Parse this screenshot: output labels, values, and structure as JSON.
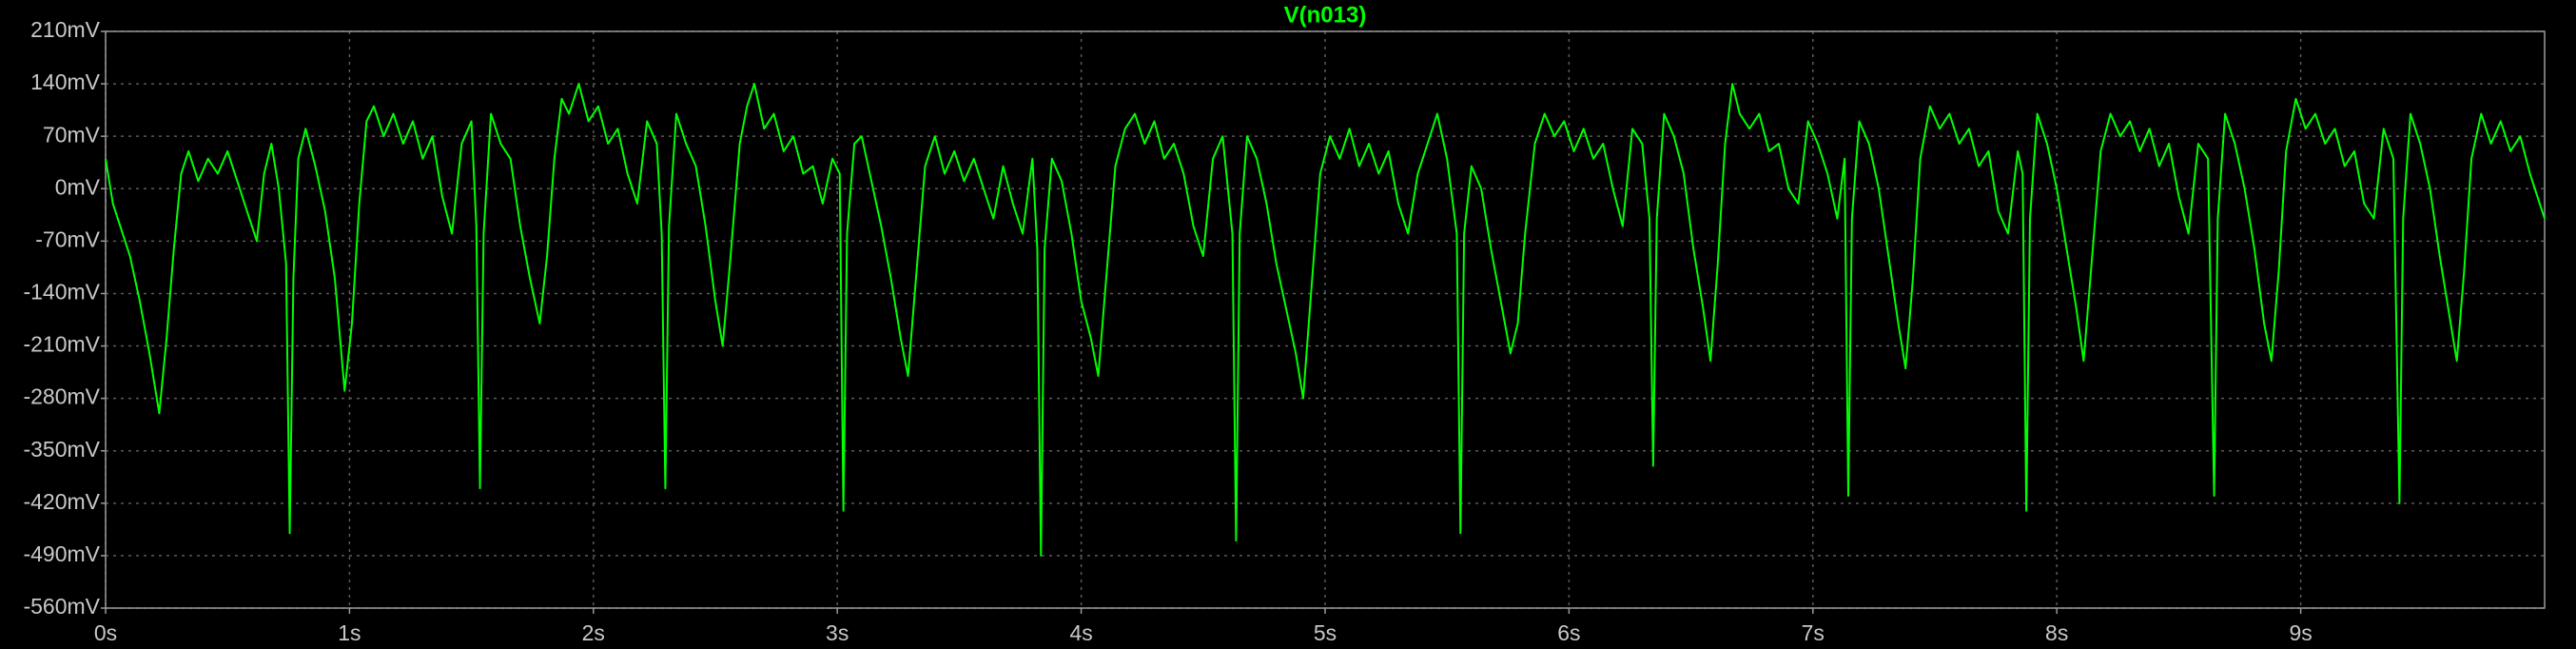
{
  "chart_data": {
    "type": "line",
    "series": [
      {
        "name": "V(n013)",
        "color": "#00ff00",
        "x": [
          0,
          0.03,
          0.06,
          0.1,
          0.14,
          0.18,
          0.22,
          0.25,
          0.28,
          0.31,
          0.34,
          0.38,
          0.42,
          0.46,
          0.5,
          0.54,
          0.58,
          0.62,
          0.65,
          0.68,
          0.71,
          0.74,
          0.755,
          0.77,
          0.79,
          0.82,
          0.86,
          0.9,
          0.94,
          0.98,
          1.01,
          1.04,
          1.07,
          1.1,
          1.14,
          1.18,
          1.22,
          1.26,
          1.3,
          1.34,
          1.38,
          1.42,
          1.46,
          1.5,
          1.52,
          1.535,
          1.55,
          1.58,
          1.62,
          1.66,
          1.7,
          1.74,
          1.78,
          1.81,
          1.84,
          1.87,
          1.9,
          1.94,
          1.98,
          2.02,
          2.06,
          2.1,
          2.14,
          2.18,
          2.22,
          2.26,
          2.28,
          2.295,
          2.31,
          2.34,
          2.38,
          2.42,
          2.46,
          2.5,
          2.53,
          2.56,
          2.6,
          2.63,
          2.66,
          2.7,
          2.74,
          2.78,
          2.82,
          2.86,
          2.9,
          2.94,
          2.98,
          3.01,
          3.025,
          3.04,
          3.07,
          3.1,
          3.14,
          3.18,
          3.22,
          3.26,
          3.29,
          3.32,
          3.36,
          3.4,
          3.44,
          3.48,
          3.52,
          3.56,
          3.6,
          3.64,
          3.68,
          3.72,
          3.76,
          3.8,
          3.82,
          3.835,
          3.85,
          3.88,
          3.92,
          3.96,
          4.0,
          4.04,
          4.07,
          4.1,
          4.14,
          4.18,
          4.22,
          4.26,
          4.3,
          4.34,
          4.38,
          4.42,
          4.46,
          4.5,
          4.54,
          4.58,
          4.62,
          4.635,
          4.65,
          4.68,
          4.72,
          4.76,
          4.8,
          4.84,
          4.88,
          4.91,
          4.94,
          4.98,
          5.02,
          5.06,
          5.1,
          5.14,
          5.18,
          5.22,
          5.26,
          5.3,
          5.34,
          5.38,
          5.42,
          5.46,
          5.5,
          5.54,
          5.555,
          5.57,
          5.6,
          5.64,
          5.68,
          5.72,
          5.76,
          5.79,
          5.82,
          5.86,
          5.9,
          5.94,
          5.98,
          6.02,
          6.06,
          6.1,
          6.14,
          6.18,
          6.22,
          6.26,
          6.3,
          6.33,
          6.345,
          6.36,
          6.39,
          6.43,
          6.47,
          6.51,
          6.55,
          6.58,
          6.61,
          6.64,
          6.67,
          6.7,
          6.74,
          6.78,
          6.82,
          6.86,
          6.9,
          6.94,
          6.98,
          7.02,
          7.06,
          7.1,
          7.13,
          7.145,
          7.16,
          7.19,
          7.23,
          7.27,
          7.31,
          7.35,
          7.38,
          7.41,
          7.44,
          7.48,
          7.52,
          7.56,
          7.6,
          7.64,
          7.68,
          7.72,
          7.76,
          7.8,
          7.84,
          7.86,
          7.875,
          7.89,
          7.92,
          7.96,
          8.0,
          8.04,
          8.08,
          8.11,
          8.14,
          8.18,
          8.22,
          8.26,
          8.3,
          8.34,
          8.38,
          8.42,
          8.46,
          8.5,
          8.54,
          8.58,
          8.62,
          8.645,
          8.66,
          8.69,
          8.73,
          8.77,
          8.81,
          8.85,
          8.88,
          8.91,
          8.94,
          8.98,
          9.02,
          9.06,
          9.1,
          9.14,
          9.18,
          9.22,
          9.26,
          9.3,
          9.34,
          9.38,
          9.405,
          9.42,
          9.45,
          9.49,
          9.53,
          9.57,
          9.61,
          9.64,
          9.67,
          9.7,
          9.74,
          9.78,
          9.82,
          9.86,
          9.9,
          9.94,
          9.98,
          10
        ],
        "values": [
          40,
          -20,
          -50,
          -90,
          -150,
          -220,
          -300,
          -200,
          -80,
          20,
          50,
          10,
          40,
          20,
          50,
          10,
          -30,
          -70,
          20,
          60,
          0,
          -100,
          -460,
          -120,
          40,
          80,
          30,
          -30,
          -120,
          -270,
          -180,
          -20,
          90,
          110,
          70,
          100,
          60,
          90,
          40,
          70,
          -10,
          -60,
          60,
          90,
          -50,
          -400,
          -60,
          100,
          60,
          40,
          -50,
          -120,
          -180,
          -90,
          40,
          120,
          100,
          140,
          90,
          110,
          60,
          80,
          20,
          -20,
          90,
          60,
          -60,
          -400,
          -50,
          100,
          60,
          30,
          -50,
          -150,
          -210,
          -100,
          60,
          110,
          140,
          80,
          100,
          50,
          70,
          20,
          30,
          -20,
          40,
          20,
          -430,
          -60,
          60,
          70,
          10,
          -50,
          -120,
          -200,
          -250,
          -130,
          30,
          70,
          20,
          50,
          10,
          40,
          0,
          -40,
          30,
          -20,
          -60,
          40,
          -80,
          -490,
          -80,
          40,
          10,
          -60,
          -150,
          -200,
          -250,
          -130,
          30,
          80,
          100,
          60,
          90,
          40,
          60,
          20,
          -50,
          -90,
          40,
          70,
          -60,
          -470,
          -60,
          70,
          40,
          -20,
          -100,
          -160,
          -220,
          -280,
          -150,
          20,
          70,
          40,
          80,
          30,
          60,
          20,
          50,
          -20,
          -60,
          20,
          60,
          100,
          40,
          -60,
          -460,
          -60,
          30,
          0,
          -80,
          -150,
          -220,
          -180,
          -60,
          60,
          100,
          70,
          90,
          50,
          80,
          40,
          60,
          0,
          -50,
          80,
          60,
          -40,
          -370,
          -40,
          100,
          70,
          20,
          -80,
          -160,
          -230,
          -100,
          60,
          140,
          100,
          80,
          100,
          50,
          60,
          0,
          -20,
          90,
          60,
          20,
          -40,
          40,
          -410,
          -40,
          90,
          60,
          0,
          -90,
          -180,
          -240,
          -120,
          40,
          110,
          80,
          100,
          60,
          80,
          30,
          50,
          -30,
          -60,
          50,
          20,
          -430,
          -40,
          100,
          60,
          0,
          -80,
          -160,
          -230,
          -110,
          50,
          100,
          70,
          90,
          50,
          80,
          30,
          60,
          -10,
          -60,
          60,
          40,
          -410,
          -40,
          100,
          60,
          0,
          -80,
          -180,
          -230,
          -110,
          50,
          120,
          80,
          100,
          60,
          80,
          30,
          50,
          -20,
          -40,
          80,
          40,
          -420,
          -40,
          100,
          60,
          0,
          -90,
          -170,
          -230,
          -110,
          40,
          100,
          60,
          90,
          50,
          70,
          20,
          -20,
          -40
        ]
      }
    ],
    "xlim": [
      0,
      10
    ],
    "ylim": [
      -560,
      210
    ],
    "xticks": [
      {
        "value": 0,
        "label": "0s"
      },
      {
        "value": 1,
        "label": "1s"
      },
      {
        "value": 2,
        "label": "2s"
      },
      {
        "value": 3,
        "label": "3s"
      },
      {
        "value": 4,
        "label": "4s"
      },
      {
        "value": 5,
        "label": "5s"
      },
      {
        "value": 6,
        "label": "6s"
      },
      {
        "value": 7,
        "label": "7s"
      },
      {
        "value": 8,
        "label": "8s"
      },
      {
        "value": 9,
        "label": "9s"
      }
    ],
    "yticks": [
      {
        "value": 210,
        "label": "210mV"
      },
      {
        "value": 140,
        "label": "140mV"
      },
      {
        "value": 70,
        "label": "70mV"
      },
      {
        "value": 0,
        "label": "0mV"
      },
      {
        "value": -70,
        "label": "-70mV"
      },
      {
        "value": -140,
        "label": "-140mV"
      },
      {
        "value": -210,
        "label": "-210mV"
      },
      {
        "value": -280,
        "label": "-280mV"
      },
      {
        "value": -350,
        "label": "-350mV"
      },
      {
        "value": -420,
        "label": "-420mV"
      },
      {
        "value": -490,
        "label": "-490mV"
      },
      {
        "value": -560,
        "label": "-560mV"
      }
    ],
    "grid": true
  }
}
